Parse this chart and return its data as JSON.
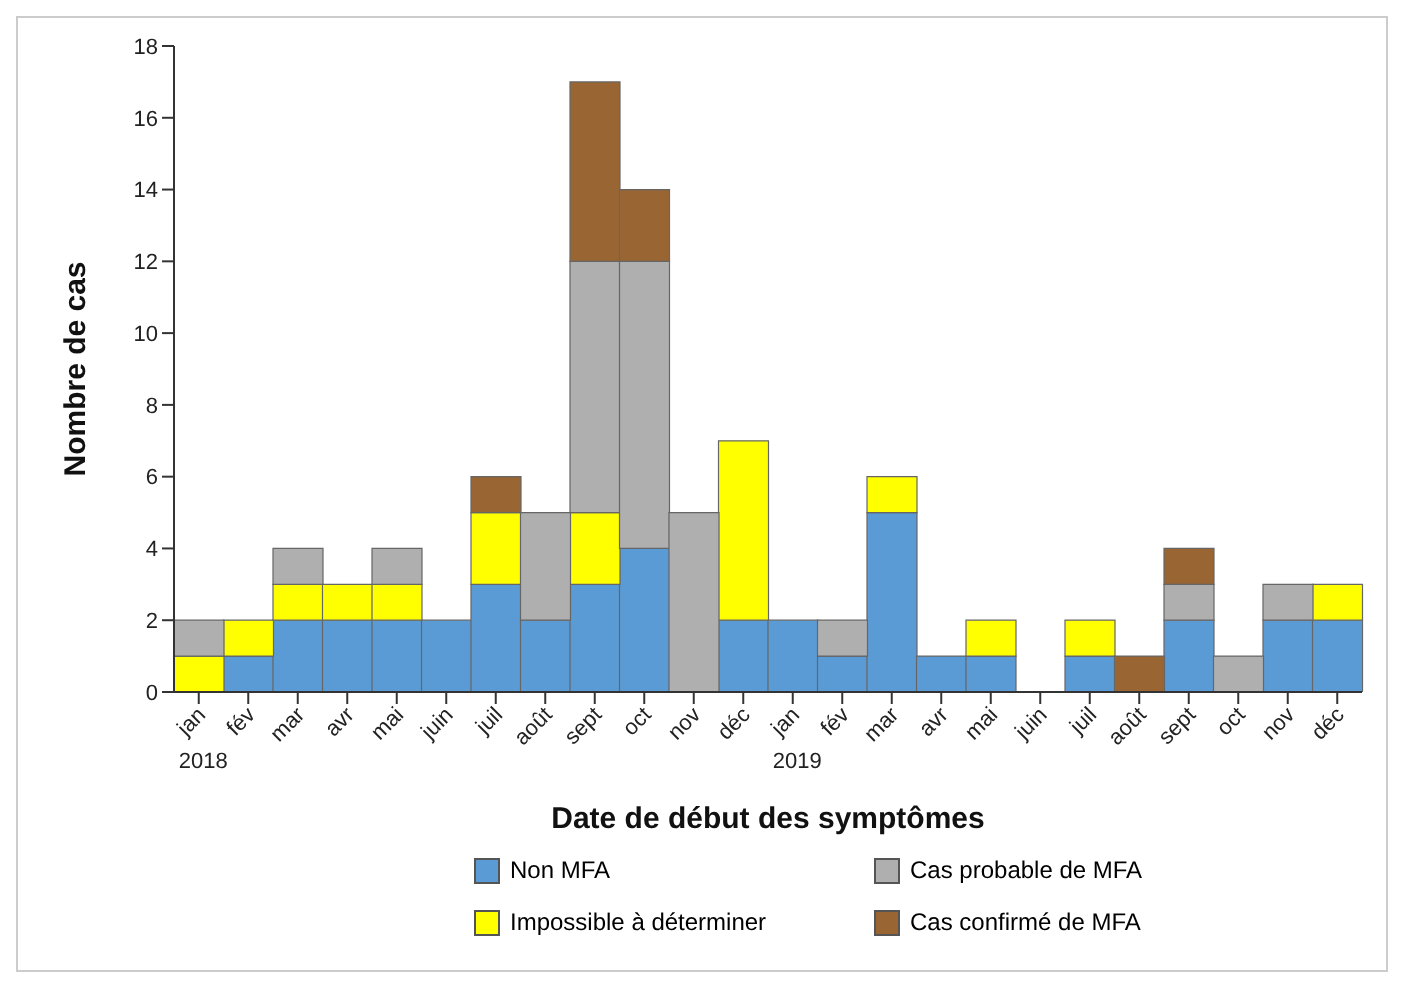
{
  "chart_data": {
    "type": "bar",
    "stacked": true,
    "xlabel": "Date de début des symptômes",
    "ylabel": "Nombre de cas",
    "categories": [
      "jan",
      "fév",
      "mar",
      "avr",
      "mai",
      "juin",
      "juil",
      "août",
      "sept",
      "oct",
      "nov",
      "déc",
      "jan",
      "fév",
      "mar",
      "avr",
      "mai",
      "juin",
      "juil",
      "août",
      "sept",
      "oct",
      "nov",
      "déc"
    ],
    "annotations": [
      "2018",
      "2019"
    ],
    "ylim": [
      0,
      18
    ],
    "yticks": [
      0,
      2,
      4,
      6,
      8,
      10,
      12,
      14,
      16,
      18
    ],
    "legend": "bottom",
    "series": [
      {
        "name": "Non MFA",
        "color": "#5b9bd5",
        "values": [
          0,
          1,
          2,
          2,
          2,
          2,
          3,
          2,
          3,
          4,
          0,
          2,
          2,
          1,
          5,
          1,
          1,
          0,
          1,
          0,
          2,
          0,
          2,
          2
        ]
      },
      {
        "name": "Impossible à déterminer",
        "color": "#ffff00",
        "values": [
          1,
          1,
          1,
          1,
          1,
          0,
          2,
          0,
          2,
          0,
          0,
          5,
          0,
          0,
          1,
          0,
          1,
          0,
          1,
          0,
          0,
          0,
          0,
          1
        ]
      },
      {
        "name": "Cas probable de MFA",
        "color": "#afafaf",
        "values": [
          1,
          0,
          1,
          0,
          1,
          0,
          0,
          3,
          7,
          8,
          5,
          0,
          0,
          1,
          0,
          0,
          0,
          0,
          0,
          0,
          1,
          1,
          1,
          0
        ]
      },
      {
        "name": "Cas confirmé de MFA",
        "color": "#996633",
        "values": [
          0,
          0,
          0,
          0,
          0,
          0,
          1,
          0,
          5,
          2,
          0,
          0,
          0,
          0,
          0,
          0,
          0,
          0,
          0,
          1,
          1,
          0,
          0,
          0
        ]
      }
    ]
  }
}
